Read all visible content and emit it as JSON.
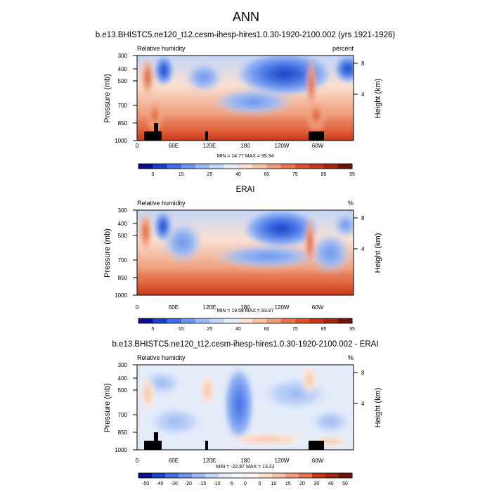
{
  "figure_title": "ANN",
  "chart_data": [
    {
      "type": "heatmap",
      "title": "b.e13.BHISTC5.ne120_t12.cesm-ihesp-hires1.0.30-1920-2100.002 (yrs 1921-1926)",
      "left_label": "Relative humidity",
      "right_label": "percent",
      "ylabel": "Pressure (mb)",
      "ylabel_right": "Height (km)",
      "x_ticks": [
        "0",
        "60E",
        "120E",
        "180",
        "120W",
        "60W"
      ],
      "y_ticks": [
        "300",
        "400",
        "500",
        "700",
        "850",
        "1000"
      ],
      "y_ticks_right": [
        "8",
        "4"
      ],
      "stats": "MIN = 14.77   MAX = 95.34",
      "min": 14.77,
      "max": 95.34,
      "colorbar_labels": [
        "5",
        "15",
        "25",
        "40",
        "60",
        "75",
        "85",
        "95"
      ]
    },
    {
      "type": "heatmap",
      "title": "ERAI",
      "left_label": "Relative humidity",
      "right_label": "%",
      "ylabel": "Pressure (mb)",
      "ylabel_right": "Height (km)",
      "x_ticks": [
        "0",
        "60E",
        "120E",
        "180",
        "120W",
        "60W"
      ],
      "y_ticks": [
        "300",
        "400",
        "500",
        "700",
        "850",
        "1000"
      ],
      "y_ticks_right": [
        "8",
        "4"
      ],
      "stats": "MIN = 19.58   MAX = 93.87",
      "min": 19.58,
      "max": 93.87,
      "colorbar_labels": [
        "5",
        "15",
        "25",
        "40",
        "60",
        "75",
        "85",
        "95"
      ]
    },
    {
      "type": "heatmap",
      "title": "b.e13.BHISTC5.ne120_t12.cesm-ihesp-hires1.0.30-1920-2100.002 - ERAI",
      "left_label": "Relative humidity",
      "right_label": "%",
      "ylabel": "Pressure (mb)",
      "ylabel_right": "Height (km)",
      "x_ticks": [
        "0",
        "60E",
        "120E",
        "180",
        "120W",
        "60W"
      ],
      "y_ticks": [
        "300",
        "400",
        "500",
        "700",
        "850",
        "1000"
      ],
      "y_ticks_right": [
        "8",
        "4"
      ],
      "stats": "MIN = -22.87   MAX = 13.22",
      "min": -22.87,
      "max": 13.22,
      "colorbar_labels": [
        "-50",
        "-40",
        "-30",
        "-20",
        "-15",
        "-10",
        "-5",
        "0",
        "5",
        "10",
        "15",
        "20",
        "30",
        "40",
        "50"
      ]
    }
  ],
  "colors": {
    "abs_scale": [
      "#08108a",
      "#1a3fc4",
      "#3e6ee0",
      "#6d94ee",
      "#9ab8f3",
      "#c4d6f7",
      "#e4ecfa",
      "#fbe0d2",
      "#f6c1a6",
      "#ef9c79",
      "#e57650",
      "#d9532c",
      "#c3361a",
      "#9c2410",
      "#6b1408"
    ],
    "diff_scale": [
      "#08108a",
      "#1a3fc4",
      "#3e6ee0",
      "#6d94ee",
      "#9ab8f3",
      "#c4d6f7",
      "#e4ecfa",
      "#f4f7fc",
      "#fdf4ef",
      "#fbe0d2",
      "#f6c1a6",
      "#ef9c79",
      "#e57650",
      "#c3361a",
      "#9c2410",
      "#6b1408"
    ],
    "terrain": "#000000"
  }
}
